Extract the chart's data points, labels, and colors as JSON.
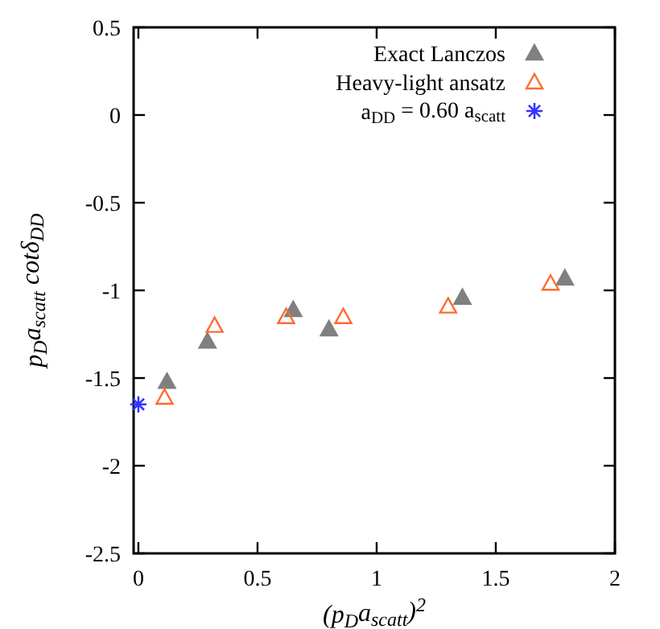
{
  "chart_data": {
    "type": "scatter",
    "xlabel": "(p$_{D}$a$_{scatt}$)$^{2}$",
    "ylabel": "p$_{D}$a$_{scatt}$ cotδ$_{DD}$",
    "xlim": [
      -0.02,
      2
    ],
    "ylim": [
      -2.5,
      0.5
    ],
    "xticks": [
      0,
      0.5,
      1,
      1.5,
      2
    ],
    "yticks": [
      -2.5,
      -2,
      -1.5,
      -1,
      -0.5,
      0,
      0.5
    ],
    "legend": "top right",
    "grid": false,
    "series": [
      {
        "name": "Exact Lanczos",
        "color": "#808080",
        "marker": "triangle",
        "x": [
          0.12,
          0.29,
          0.65,
          0.8,
          1.36,
          1.79
        ],
        "values": [
          -1.52,
          -1.29,
          -1.11,
          -1.22,
          -1.04,
          -0.93
        ]
      },
      {
        "name": "Heavy-light ansatz",
        "color": "#ff6a33",
        "marker": "triangle",
        "x": [
          0.11,
          0.32,
          0.62,
          0.86,
          1.3,
          1.73
        ],
        "values": [
          -1.61,
          -1.2,
          -1.15,
          -1.15,
          -1.09,
          -0.96
        ]
      },
      {
        "name": "a$_{DD}$ = 0.60 a$_{scatt}$",
        "color": "#3333ff",
        "marker": "cross",
        "x": [
          0.0
        ],
        "values": [
          -1.65
        ]
      }
    ]
  }
}
